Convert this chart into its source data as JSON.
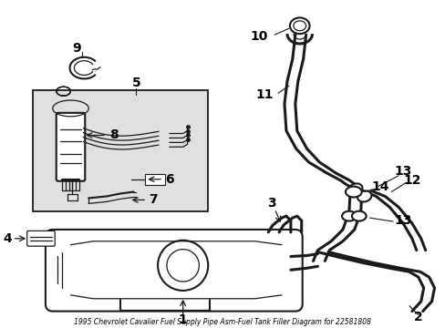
{
  "title": "1995 Chevrolet Cavalier Fuel Supply Pipe Asm-Fuel Tank Filler Diagram for 22581808",
  "bg_color": "#ffffff",
  "line_color": "#1a1a1a",
  "label_color": "#000000",
  "inset_bg": "#e0e0e0",
  "inset_border": "#000000",
  "font_size": 10,
  "font_size_title": 5.5,
  "figsize": [
    4.89,
    3.6
  ],
  "dpi": 100
}
